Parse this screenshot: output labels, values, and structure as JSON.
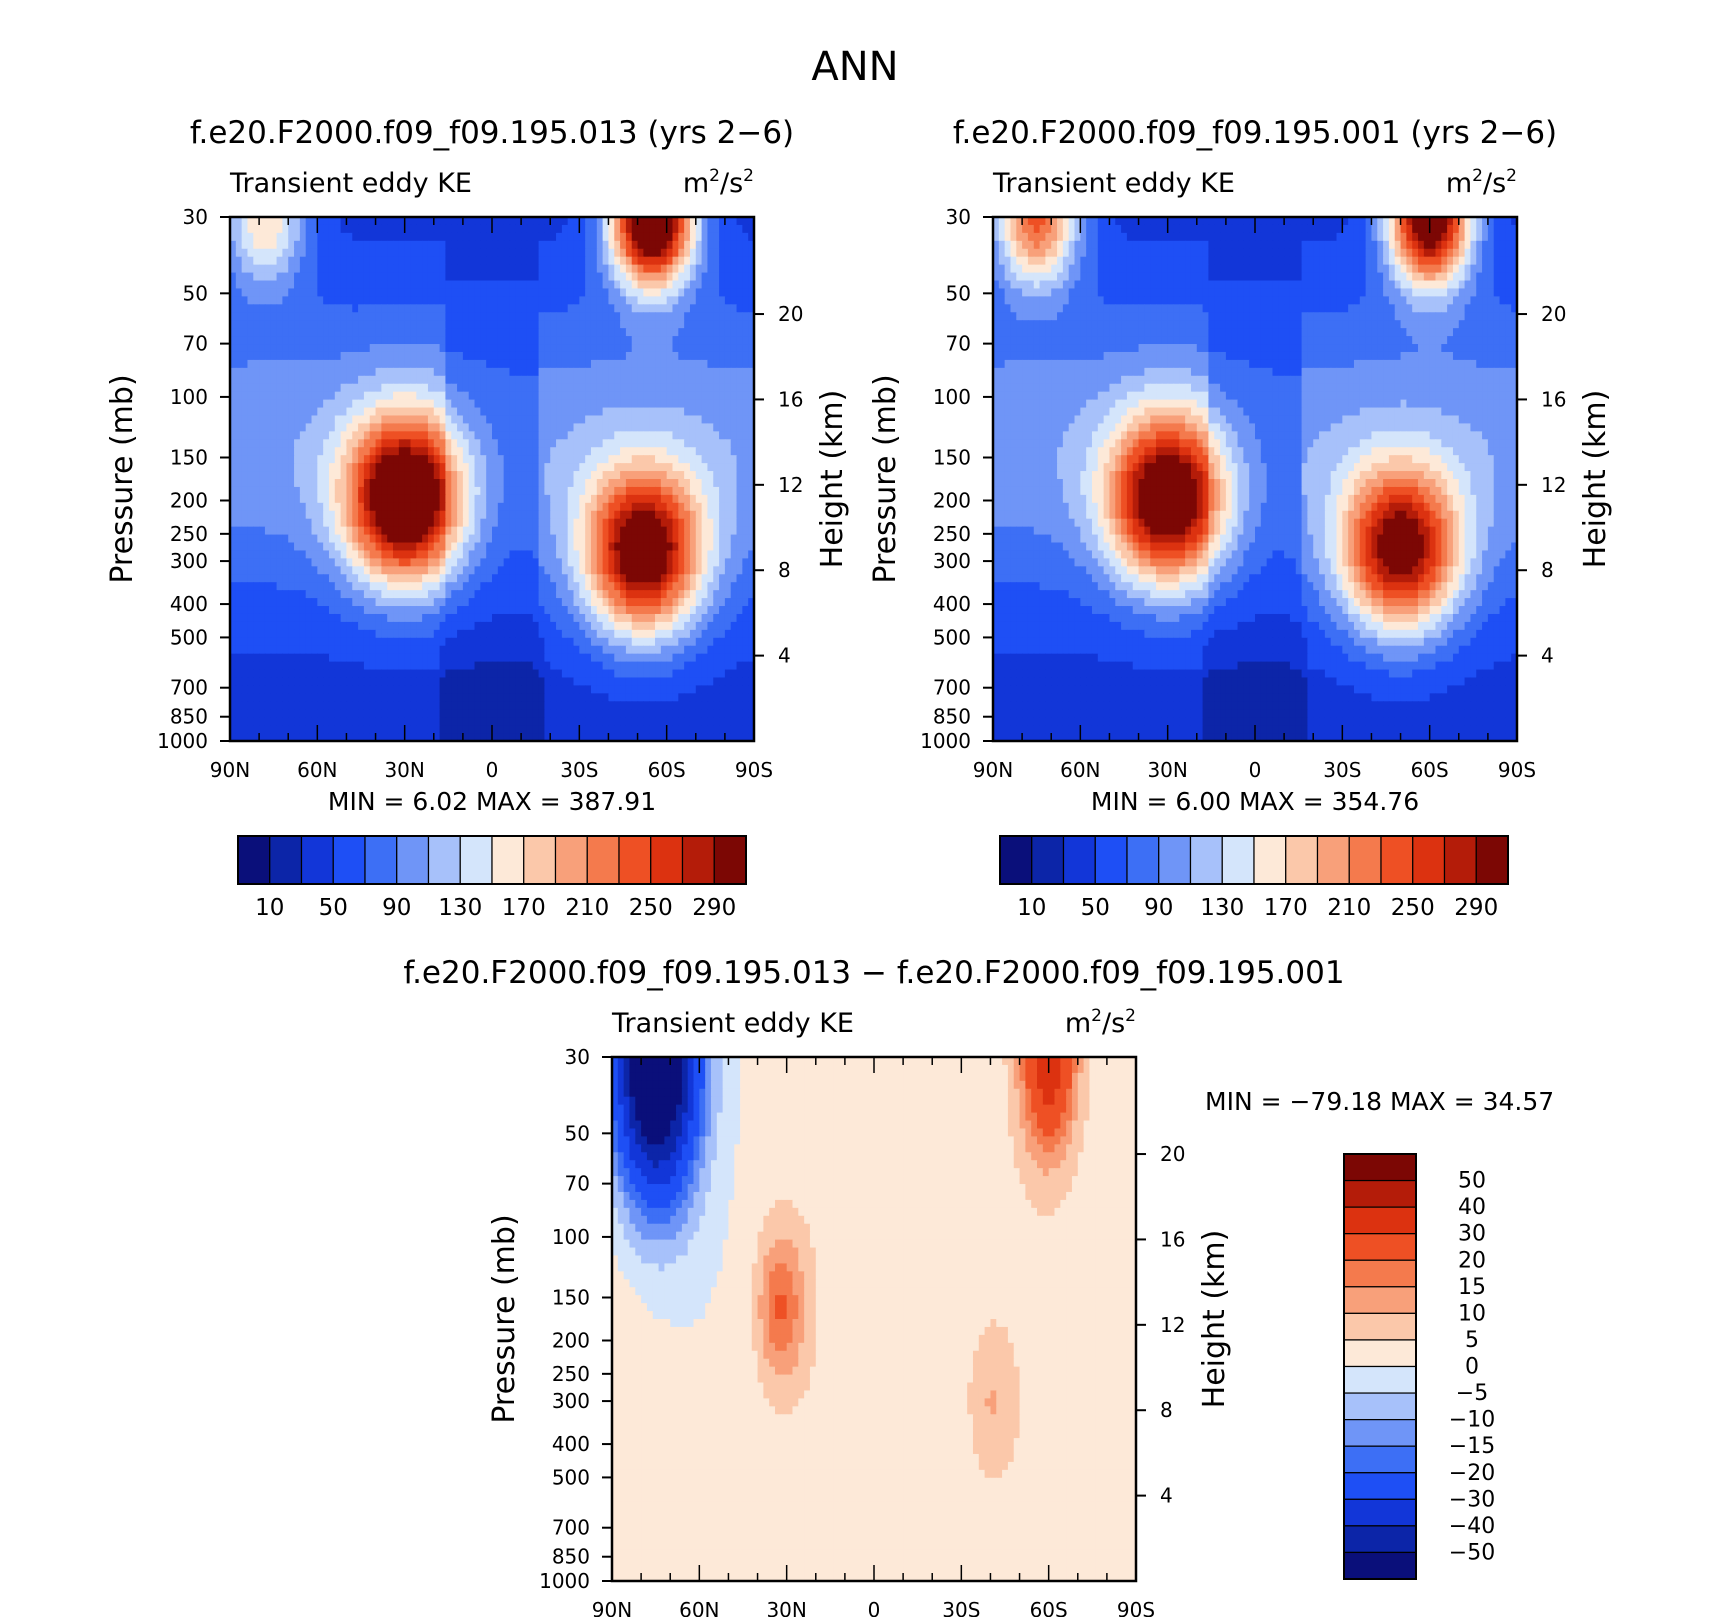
{
  "figure_title": "ANN",
  "chart_data": [
    {
      "type": "heatmap",
      "title": "f.e20.F2000.f09_f09.195.013 (yrs 2−6)",
      "variable": "Transient eddy KE",
      "units_base": "m",
      "units_tail": "/s",
      "units_exp": "2",
      "ylabel": "Pressure (mb)",
      "ylabel_right": "Height (km)",
      "x_ticks": [
        "90N",
        "60N",
        "30N",
        "0",
        "30S",
        "60S",
        "90S"
      ],
      "y_ticks": [
        "30",
        "50",
        "70",
        "100",
        "150",
        "200",
        "250",
        "300",
        "400",
        "500",
        "700",
        "850",
        "1000"
      ],
      "height_ticks": [
        "20",
        "16",
        "12",
        "8",
        "4"
      ],
      "min_label": "MIN =",
      "min_value": "6.02",
      "max_label": "MAX =",
      "max_value": "387.91",
      "colorbar_labels": [
        "10",
        "50",
        "90",
        "130",
        "170",
        "210",
        "250",
        "290"
      ],
      "colors": [
        "#0a0f7a",
        "#0c25a8",
        "#1236d8",
        "#1e4ff5",
        "#3d6ff5",
        "#6f95f7",
        "#a7c1fa",
        "#d4e5fb",
        "#fde9d8",
        "#fbc8aa",
        "#f8a07a",
        "#f47a4d",
        "#ee5024",
        "#dc3210",
        "#b41c09",
        "#7c0704"
      ],
      "features": [
        {
          "lat": 30,
          "p": 200,
          "peak": 330
        },
        {
          "lat": -52,
          "p": 285,
          "peak": 315
        },
        {
          "lat": -55,
          "p": 30,
          "peak": 387.91
        },
        {
          "lat": 78,
          "p": 30,
          "peak": 185
        }
      ]
    },
    {
      "type": "heatmap",
      "title": "f.e20.F2000.f09_f09.195.001 (yrs 2−6)",
      "variable": "Transient eddy KE",
      "units_base": "m",
      "units_tail": "/s",
      "units_exp": "2",
      "ylabel": "Pressure (mb)",
      "ylabel_right": "Height (km)",
      "x_ticks": [
        "90N",
        "60N",
        "30N",
        "0",
        "30S",
        "60S",
        "90S"
      ],
      "y_ticks": [
        "30",
        "50",
        "70",
        "100",
        "150",
        "200",
        "250",
        "300",
        "400",
        "500",
        "700",
        "850",
        "1000"
      ],
      "height_ticks": [
        "20",
        "16",
        "12",
        "8",
        "4"
      ],
      "min_label": "MIN =",
      "min_value": "6.00",
      "max_label": "MAX =",
      "max_value": "354.76",
      "colorbar_labels": [
        "10",
        "50",
        "90",
        "130",
        "170",
        "210",
        "250",
        "290"
      ],
      "colors": [
        "#0a0f7a",
        "#0c25a8",
        "#1236d8",
        "#1e4ff5",
        "#3d6ff5",
        "#6f95f7",
        "#a7c1fa",
        "#d4e5fb",
        "#fde9d8",
        "#fbc8aa",
        "#f8a07a",
        "#f47a4d",
        "#ee5024",
        "#dc3210",
        "#b41c09",
        "#7c0704"
      ],
      "features": [
        {
          "lat": 30,
          "p": 200,
          "peak": 310
        },
        {
          "lat": -50,
          "p": 280,
          "peak": 300
        },
        {
          "lat": -60,
          "p": 30,
          "peak": 354.76
        },
        {
          "lat": 75,
          "p": 30,
          "peak": 250
        }
      ]
    },
    {
      "type": "heatmap",
      "title": "f.e20.F2000.f09_f09.195.013 − f.e20.F2000.f09_f09.195.001",
      "variable": "Transient eddy KE",
      "units_base": "m",
      "units_tail": "/s",
      "units_exp": "2",
      "ylabel": "Pressure (mb)",
      "ylabel_right": "Height (km)",
      "x_ticks": [
        "90N",
        "60N",
        "30N",
        "0",
        "30S",
        "60S",
        "90S"
      ],
      "y_ticks": [
        "30",
        "50",
        "70",
        "100",
        "150",
        "200",
        "250",
        "300",
        "400",
        "500",
        "700",
        "850",
        "1000"
      ],
      "height_ticks": [
        "20",
        "16",
        "12",
        "8",
        "4"
      ],
      "min_label": "MIN =",
      "min_value": "−79.18",
      "max_label": "MAX =",
      "max_value": "34.57",
      "colorbar_labels": [
        "50",
        "40",
        "30",
        "20",
        "15",
        "10",
        "5",
        "0",
        "−5",
        "−10",
        "−15",
        "−20",
        "−30",
        "−40",
        "−50"
      ],
      "colors": [
        "#7c0704",
        "#b41c09",
        "#dc3210",
        "#ee5024",
        "#f47a4d",
        "#f8a07a",
        "#fbc8aa",
        "#fde9d8",
        "#d4e5fb",
        "#a7c1fa",
        "#6f95f7",
        "#3d6ff5",
        "#1e4ff5",
        "#1236d8",
        "#0c25a8",
        "#0a0f7a"
      ],
      "features": [
        {
          "lat": 75,
          "p": 30,
          "peak": -79.18
        },
        {
          "lat": -60,
          "p": 30,
          "peak": 34.57
        },
        {
          "lat": 32,
          "p": 160,
          "peak": 18
        },
        {
          "lat": -40,
          "p": 300,
          "peak": 8
        }
      ]
    }
  ]
}
